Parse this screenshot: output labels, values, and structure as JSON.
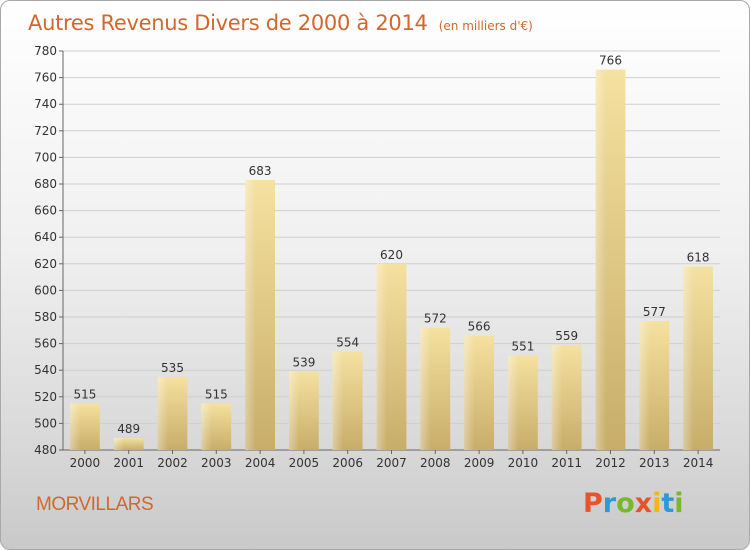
{
  "title": "Autres Revenus Divers de 2000 à 2014",
  "subtitle": "(en milliers d'€)",
  "commune": "MORVILLARS",
  "logo": {
    "letters": [
      "P",
      "r",
      "o",
      "x",
      "i",
      "t",
      "i"
    ],
    "colors": [
      "#e8532b",
      "#2c9ad8",
      "#78b82a",
      "#e8532b",
      "#f2b61c",
      "#2c9ad8",
      "#78b82a"
    ]
  },
  "colors": {
    "title": "#d2672d",
    "bar_light": "#f5e1a0",
    "bar_dark": "#c8ad6a",
    "grid": "#cfcfcf",
    "axis": "#666666"
  },
  "chart_data": {
    "type": "bar",
    "categories": [
      "2000",
      "2001",
      "2002",
      "2003",
      "2004",
      "2005",
      "2006",
      "2007",
      "2008",
      "2009",
      "2010",
      "2011",
      "2012",
      "2013",
      "2014"
    ],
    "values": [
      515,
      489,
      535,
      515,
      683,
      539,
      554,
      620,
      572,
      566,
      551,
      559,
      766,
      577,
      618
    ],
    "ylim": [
      480,
      780
    ],
    "yticks": [
      480,
      500,
      520,
      540,
      560,
      580,
      600,
      620,
      640,
      660,
      680,
      700,
      720,
      740,
      760,
      780
    ],
    "grid": true,
    "data_labels": true
  }
}
